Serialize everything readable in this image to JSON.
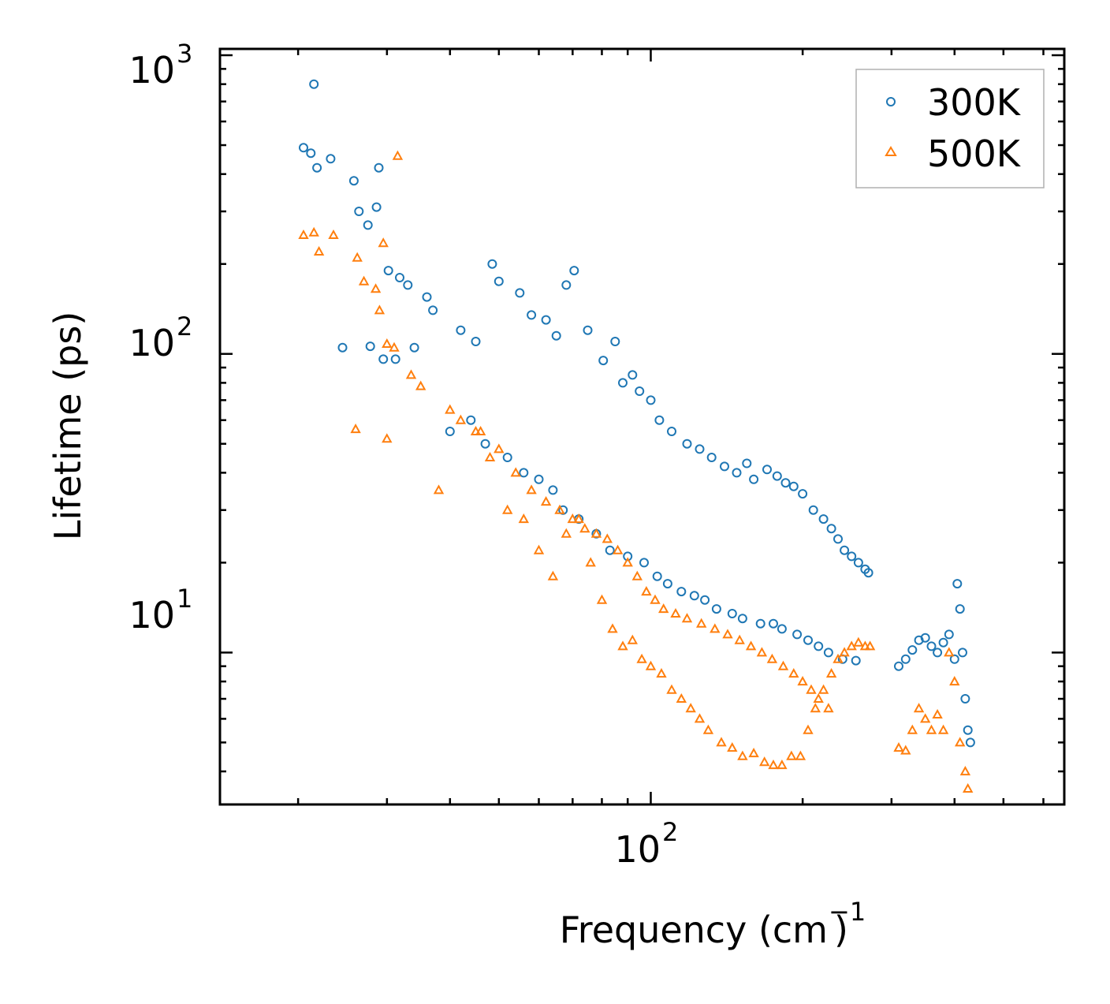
{
  "chart_data": {
    "type": "scatter",
    "title": "",
    "xlabel": "Frequency (cm⁻¹)",
    "xlabel_parts": {
      "main": "Frequency (cm",
      "sup": "−1",
      "close": ")"
    },
    "ylabel": "Lifetime (ps)",
    "xscale": "log",
    "yscale": "log",
    "xlim": [
      14,
      660
    ],
    "ylim": [
      3.1,
      1050
    ],
    "x_ticks": [
      {
        "value": 100,
        "base": "10",
        "exp": "2"
      }
    ],
    "y_ticks": [
      {
        "value": 10,
        "base": "10",
        "exp": "1"
      },
      {
        "value": 100,
        "base": "10",
        "exp": "2"
      },
      {
        "value": 1000,
        "base": "10",
        "exp": "3"
      }
    ],
    "legend_position": "top-right",
    "series": [
      {
        "name": "300K",
        "marker": "circle-open",
        "color": "#1f77b4",
        "x": [
          20.5,
          21.2,
          21.8,
          23.2,
          25.8,
          26.4,
          27.5,
          28.6,
          28.9,
          30.2,
          31.8,
          33.0,
          36.0,
          21.5,
          31.2,
          37.0,
          42.0,
          45.0,
          48.5,
          50.0,
          55.0,
          58.0,
          62.0,
          65.0,
          68.0,
          70.5,
          75.0,
          80.5,
          85.0,
          88.0,
          92.0,
          95.0,
          100.0,
          104.0,
          110.0,
          118.0,
          125.0,
          132.0,
          140.0,
          148.0,
          155.0,
          160.0,
          170.0,
          178.0,
          185.0,
          192.0,
          200.0,
          210.0,
          220.0,
          228.0,
          235.0,
          242.0,
          250.0,
          258.0,
          266.0,
          270.0,
          24.5,
          27.8,
          29.5,
          34.0,
          40.0,
          44.0,
          47.0,
          52.0,
          56.0,
          60.0,
          64.0,
          67.0,
          72.0,
          78.0,
          83.0,
          90.0,
          97.0,
          103.0,
          108.0,
          115.0,
          122.0,
          128.0,
          135.0,
          145.0,
          152.0,
          165.0,
          175.0,
          182.0,
          195.0,
          205.0,
          215.0,
          225.0,
          240.0,
          255.0,
          310.0,
          320.0,
          330.0,
          340.0,
          350.0,
          360.0,
          370.0,
          380.0,
          390.0,
          400.0,
          405.0,
          410.0,
          415.0,
          420.0,
          425.0,
          430.0
        ],
        "y": [
          490,
          470,
          420,
          450,
          380,
          300,
          270,
          310,
          420,
          190,
          180,
          170,
          155,
          800,
          96,
          140,
          120,
          110,
          200,
          175,
          160,
          135,
          130,
          115,
          170,
          190,
          120,
          95,
          110,
          80,
          85,
          75,
          70,
          60,
          55,
          50,
          48,
          45,
          42,
          40,
          43,
          38,
          41,
          39,
          37,
          36,
          34,
          30,
          28,
          26,
          24,
          22,
          21,
          20,
          19,
          18.5,
          105,
          106,
          96,
          105,
          55,
          60,
          50,
          45,
          40,
          38,
          35,
          30,
          28,
          25,
          22,
          21,
          20,
          18,
          17,
          16,
          15.5,
          15,
          14,
          13.5,
          13,
          12.5,
          12.5,
          12,
          11.5,
          11,
          10.5,
          10,
          9.5,
          9.4,
          9.0,
          9.5,
          10.2,
          11.0,
          11.2,
          10.5,
          10.0,
          10.8,
          11.5,
          9.5,
          17.0,
          14.0,
          10.0,
          7.0,
          5.5,
          5.0
        ]
      },
      {
        "name": "500K",
        "marker": "triangle-open",
        "color": "#ff7f0e",
        "x": [
          20.5,
          21.5,
          22.0,
          23.5,
          26.2,
          27.0,
          28.5,
          29.0,
          29.5,
          30.0,
          31.0,
          31.5,
          33.5,
          35.0,
          26.0,
          30.0,
          38.0,
          42.0,
          45.0,
          48.0,
          52.0,
          56.0,
          60.0,
          64.0,
          68.0,
          72.0,
          76.0,
          80.0,
          84.0,
          88.0,
          92.0,
          96.0,
          100.0,
          105.0,
          110.0,
          115.0,
          120.0,
          125.0,
          130.0,
          138.0,
          145.0,
          152.0,
          160.0,
          168.0,
          175.0,
          182.0,
          190.0,
          198.0,
          205.0,
          212.0,
          220.0,
          228.0,
          235.0,
          242.0,
          250.0,
          258.0,
          266.0,
          272.0,
          40.0,
          46.0,
          50.0,
          54.0,
          58.0,
          62.0,
          66.0,
          70.0,
          74.0,
          78.0,
          82.0,
          86.0,
          90.0,
          94.0,
          98.0,
          102.0,
          106.0,
          112.0,
          118.0,
          126.0,
          134.0,
          142.0,
          150.0,
          158.0,
          166.0,
          174.0,
          183.0,
          192.0,
          200.0,
          208.0,
          215.0,
          225.0,
          310.0,
          320.0,
          330.0,
          340.0,
          350.0,
          360.0,
          370.0,
          380.0,
          390.0,
          400.0,
          410.0,
          420.0,
          425.0
        ],
        "y": [
          250,
          255,
          220,
          250,
          210,
          175,
          165,
          140,
          235,
          108,
          105,
          460,
          85,
          78,
          56,
          52,
          35,
          60,
          55,
          45,
          30,
          28,
          22,
          18,
          25,
          28,
          20,
          15,
          12,
          10.5,
          11,
          9.5,
          9.0,
          8.5,
          7.5,
          7.0,
          6.5,
          6.0,
          5.5,
          5.0,
          4.8,
          4.5,
          4.6,
          4.3,
          4.2,
          4.2,
          4.5,
          4.5,
          5.5,
          6.5,
          7.5,
          8.5,
          9.5,
          10.0,
          10.5,
          10.8,
          10.5,
          10.5,
          65,
          55,
          48,
          40,
          35,
          32,
          30,
          28,
          26,
          25,
          24,
          22,
          20,
          18,
          16,
          15,
          14,
          13.5,
          13,
          12.5,
          12,
          11.5,
          11,
          10.5,
          10,
          9.5,
          9.0,
          8.5,
          8.0,
          7.5,
          7.0,
          6.5,
          4.8,
          4.7,
          5.5,
          6.5,
          6.0,
          5.5,
          6.2,
          5.5,
          10.0,
          8.0,
          5.0,
          4.0,
          3.5
        ]
      }
    ]
  }
}
